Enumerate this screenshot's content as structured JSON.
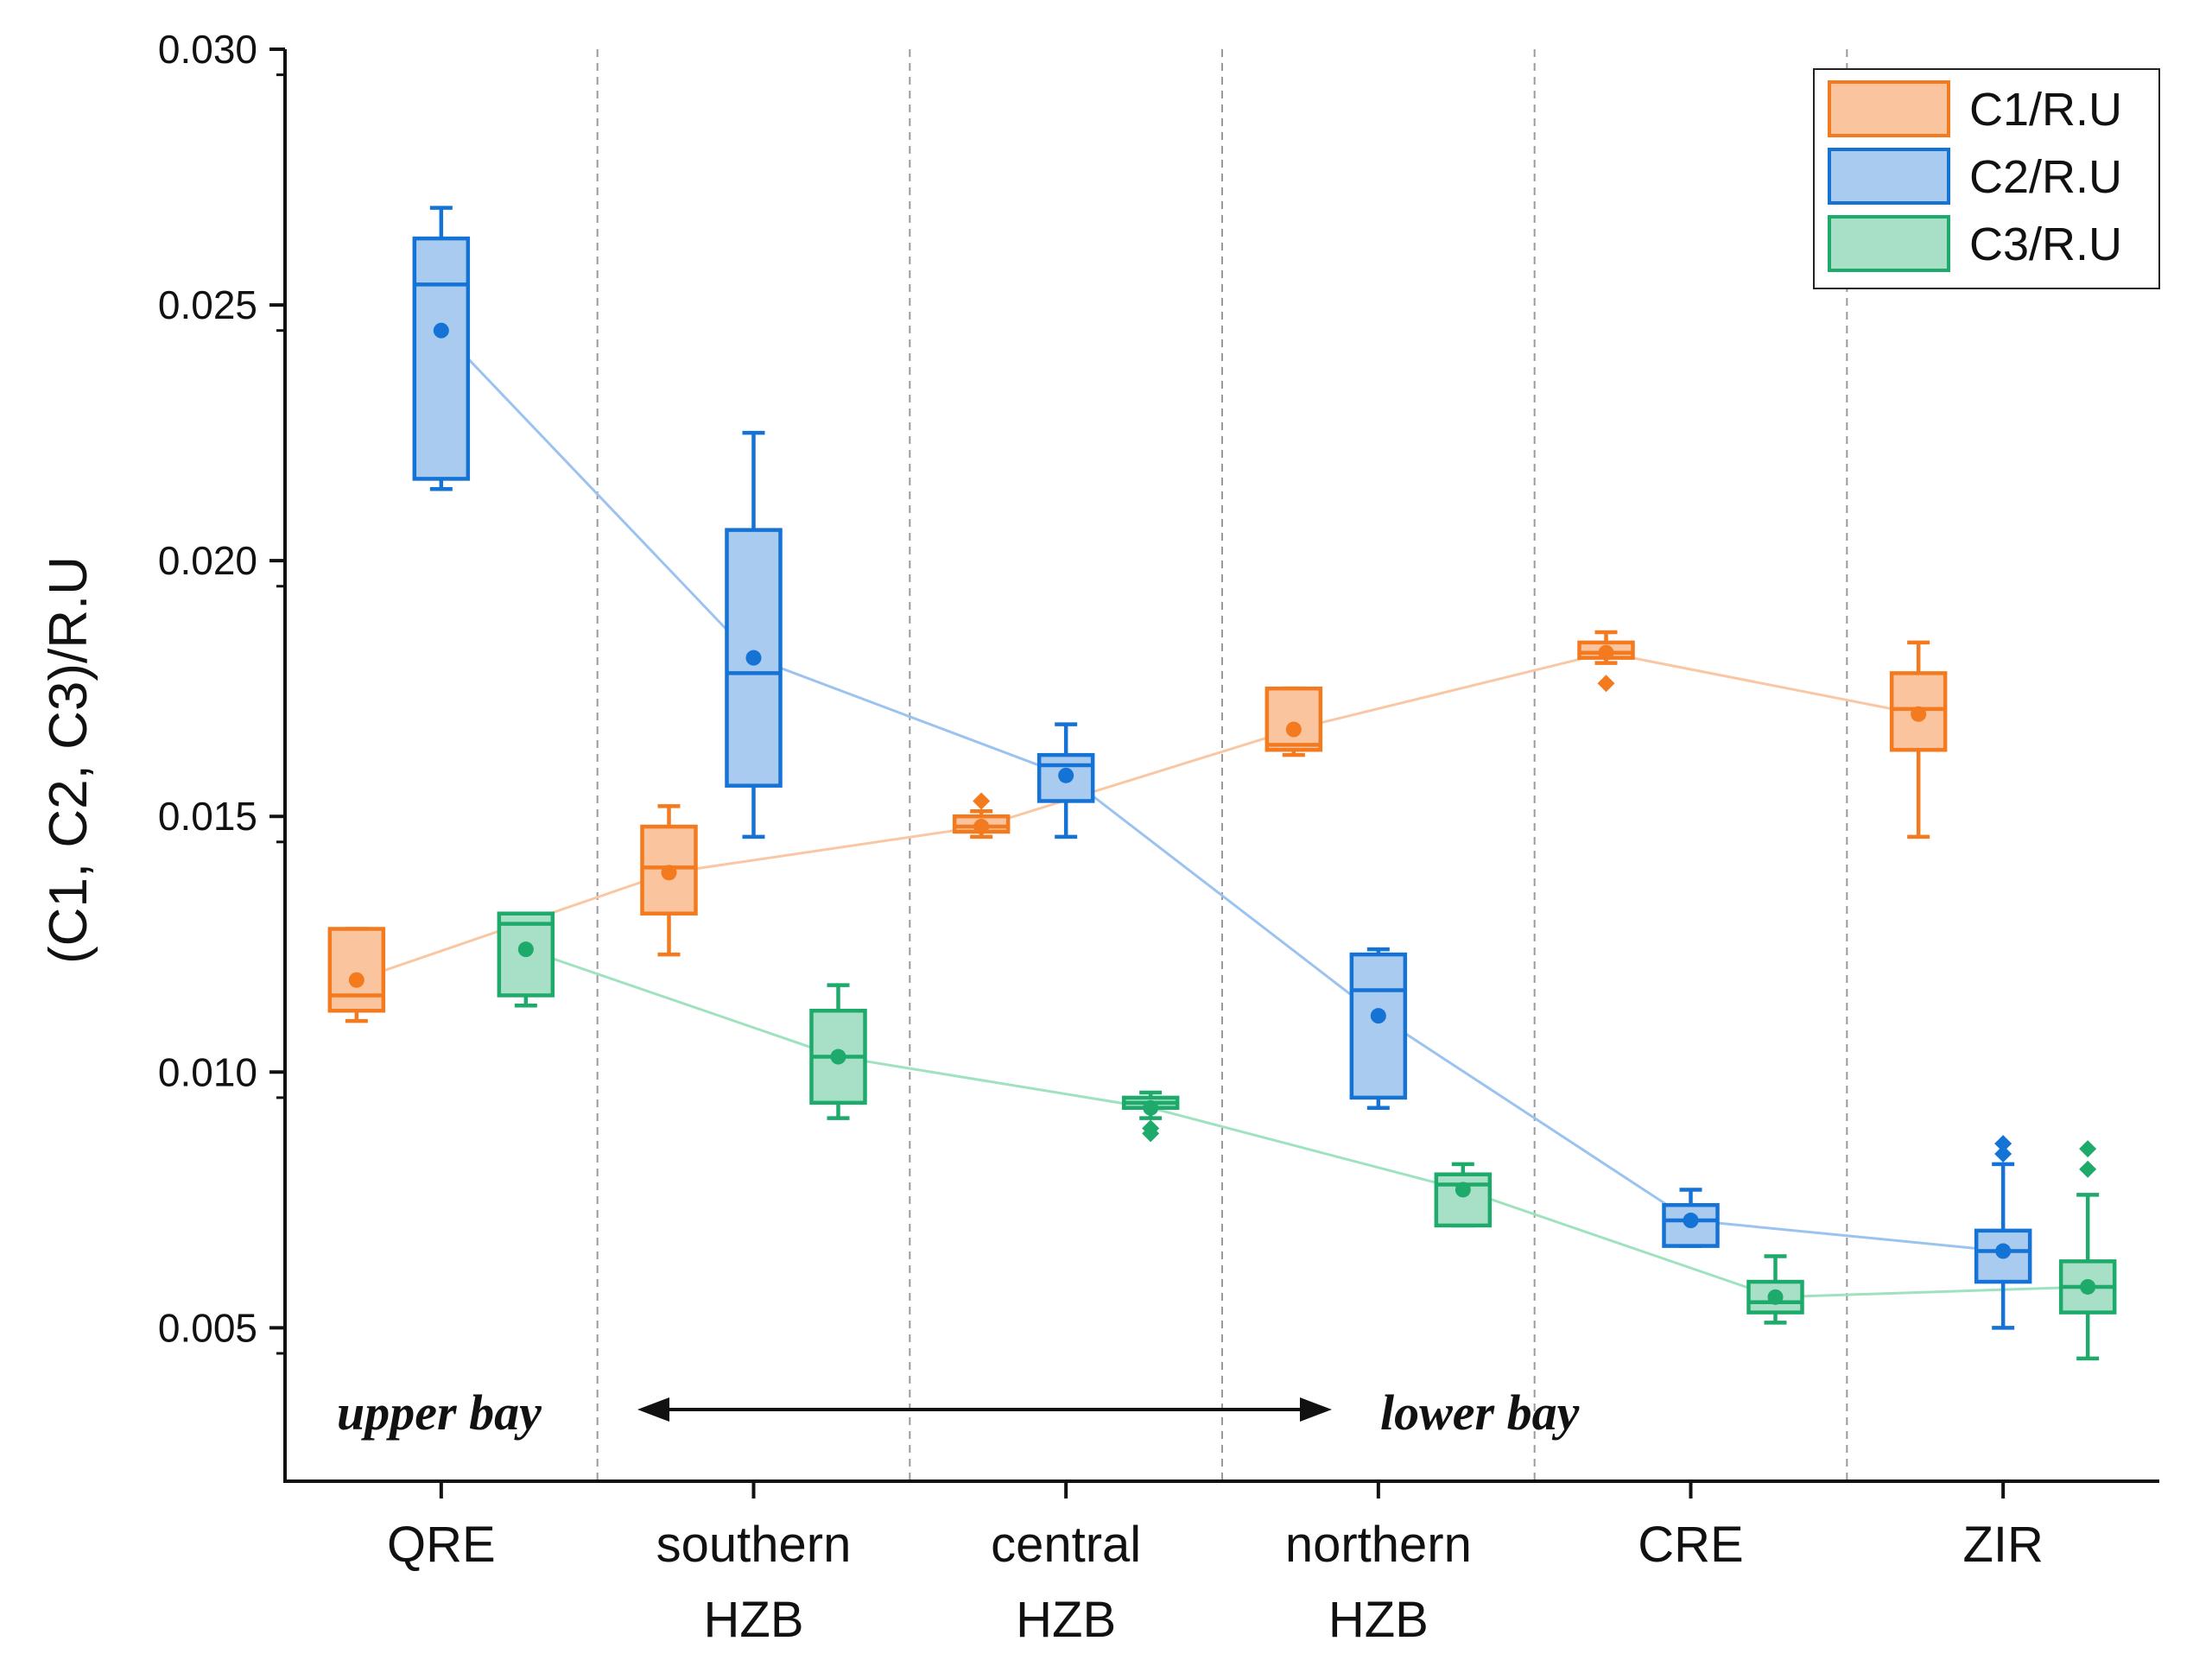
{
  "chart_data": {
    "type": "box",
    "ylabel": "(C1, C2, C3)/R.U",
    "ylim": [
      0.002,
      0.03
    ],
    "yticks": [
      "0.005",
      "0.010",
      "0.015",
      "0.020",
      "0.025",
      "0.030"
    ],
    "ytick_values": [
      0.005,
      0.01,
      0.015,
      0.02,
      0.025,
      0.03
    ],
    "categories": [
      {
        "line1": "QRE",
        "line2": ""
      },
      {
        "line1": "southern",
        "line2": "HZB"
      },
      {
        "line1": "central",
        "line2": "HZB"
      },
      {
        "line1": "northern",
        "line2": "HZB"
      },
      {
        "line1": "CRE",
        "line2": ""
      },
      {
        "line1": "ZIR",
        "line2": ""
      }
    ],
    "series": [
      {
        "name": "C1/R.U",
        "stroke": "#F47A1F",
        "fill": "#F9C49E",
        "mean_line": "#F9C7A3",
        "boxes": [
          {
            "min": 0.011,
            "q1": 0.0112,
            "median": 0.0115,
            "q3": 0.0128,
            "max": 0.0128,
            "mean": 0.0118,
            "outliers": []
          },
          {
            "min": 0.0123,
            "q1": 0.0131,
            "median": 0.014,
            "q3": 0.0148,
            "max": 0.0152,
            "mean": 0.0139,
            "outliers": []
          },
          {
            "min": 0.0146,
            "q1": 0.0147,
            "median": 0.0148,
            "q3": 0.015,
            "max": 0.0151,
            "mean": 0.0148,
            "outliers": [
              0.0153
            ]
          },
          {
            "min": 0.0162,
            "q1": 0.0163,
            "median": 0.0164,
            "q3": 0.0175,
            "max": 0.0175,
            "mean": 0.0167,
            "outliers": []
          },
          {
            "min": 0.018,
            "q1": 0.0181,
            "median": 0.0182,
            "q3": 0.0184,
            "max": 0.0186,
            "mean": 0.0182,
            "outliers": [
              0.0176
            ]
          },
          {
            "min": 0.0146,
            "q1": 0.0163,
            "median": 0.0171,
            "q3": 0.0178,
            "max": 0.0184,
            "mean": 0.017,
            "outliers": []
          }
        ]
      },
      {
        "name": "C2/R.U",
        "stroke": "#1573D6",
        "fill": "#A9CBF0",
        "mean_line": "#9CC3EF",
        "boxes": [
          {
            "min": 0.0214,
            "q1": 0.0216,
            "median": 0.0254,
            "q3": 0.0263,
            "max": 0.0269,
            "mean": 0.0245,
            "outliers": []
          },
          {
            "min": 0.0146,
            "q1": 0.0156,
            "median": 0.0178,
            "q3": 0.0206,
            "max": 0.0225,
            "mean": 0.0181,
            "outliers": []
          },
          {
            "min": 0.0146,
            "q1": 0.0153,
            "median": 0.016,
            "q3": 0.0162,
            "max": 0.0168,
            "mean": 0.0158,
            "outliers": []
          },
          {
            "min": 0.0093,
            "q1": 0.0095,
            "median": 0.0116,
            "q3": 0.0123,
            "max": 0.0124,
            "mean": 0.0111,
            "outliers": []
          },
          {
            "min": 0.0066,
            "q1": 0.0066,
            "median": 0.0071,
            "q3": 0.0074,
            "max": 0.0077,
            "mean": 0.0071,
            "outliers": []
          },
          {
            "min": 0.005,
            "q1": 0.0059,
            "median": 0.0065,
            "q3": 0.0069,
            "max": 0.0082,
            "mean": 0.0065,
            "outliers": [
              0.0084,
              0.0086
            ]
          }
        ]
      },
      {
        "name": "C3/R.U",
        "stroke": "#1DAA6B",
        "fill": "#A8E0C7",
        "mean_line": "#9FE3BE",
        "boxes": [
          {
            "min": 0.0113,
            "q1": 0.0115,
            "median": 0.0129,
            "q3": 0.0131,
            "max": 0.0131,
            "mean": 0.0124,
            "outliers": []
          },
          {
            "min": 0.0091,
            "q1": 0.0094,
            "median": 0.0103,
            "q3": 0.0112,
            "max": 0.0117,
            "mean": 0.0103,
            "outliers": []
          },
          {
            "min": 0.0091,
            "q1": 0.0093,
            "median": 0.0094,
            "q3": 0.0095,
            "max": 0.0096,
            "mean": 0.0093,
            "outliers": [
              0.0089,
              0.0088
            ]
          },
          {
            "min": 0.007,
            "q1": 0.007,
            "median": 0.0078,
            "q3": 0.008,
            "max": 0.0082,
            "mean": 0.0077,
            "outliers": []
          },
          {
            "min": 0.0051,
            "q1": 0.0053,
            "median": 0.0055,
            "q3": 0.0059,
            "max": 0.0064,
            "mean": 0.0056,
            "outliers": []
          },
          {
            "min": 0.0044,
            "q1": 0.0053,
            "median": 0.0058,
            "q3": 0.0063,
            "max": 0.0076,
            "mean": 0.0058,
            "outliers": [
              0.0081,
              0.0085
            ]
          }
        ]
      }
    ],
    "annotations": {
      "left_text": "upper bay",
      "right_text": "lower bay"
    },
    "legend_position": "top-right",
    "grid": "vertical dashed separators between categories"
  }
}
